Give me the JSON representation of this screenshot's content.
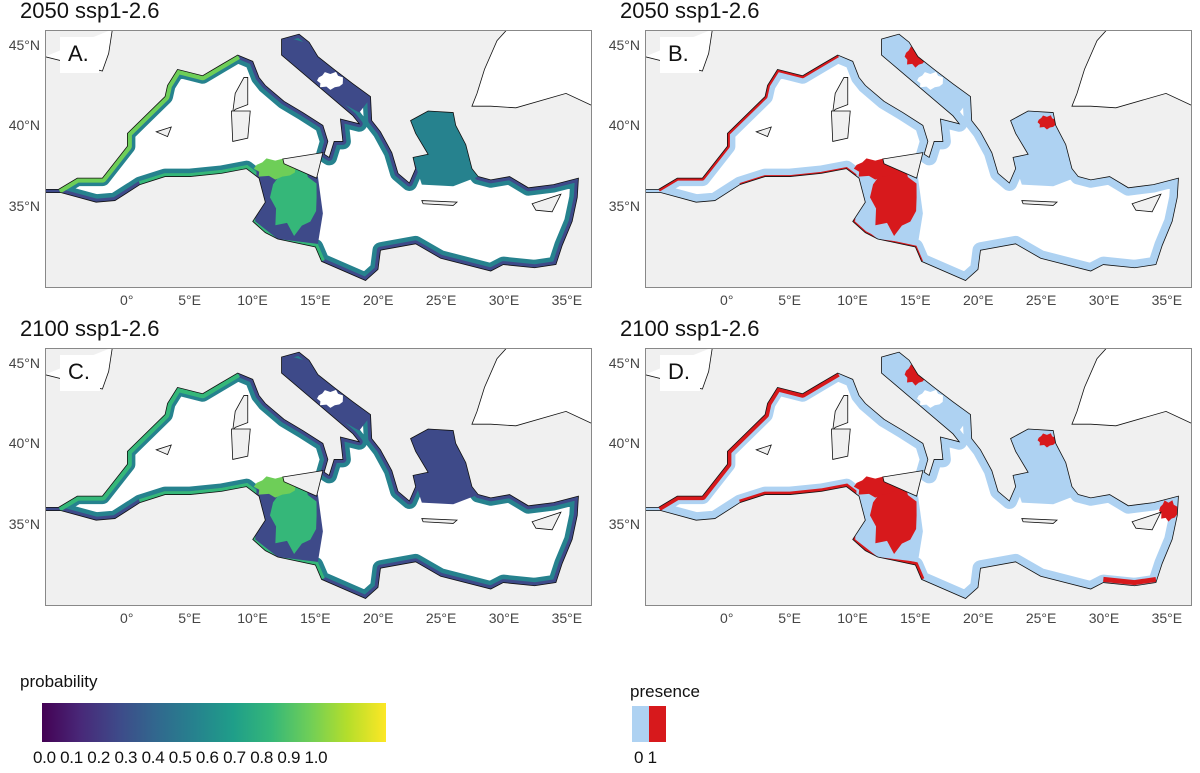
{
  "panels": [
    {
      "title": "2050 ssp1-2.6",
      "label": "A.",
      "type": "probability"
    },
    {
      "title": "2050 ssp1-2.6",
      "label": "B.",
      "type": "presence"
    },
    {
      "title": "2100 ssp1-2.6",
      "label": "C.",
      "type": "probability"
    },
    {
      "title": "2100 ssp1-2.6",
      "label": "D.",
      "type": "presence"
    }
  ],
  "lat_ticks": [
    "45°N",
    "40°N",
    "35°N"
  ],
  "lat_values": [
    45,
    40,
    35
  ],
  "lon_ticks": [
    "0°",
    "5°E",
    "10°E",
    "15°E",
    "20°E",
    "25°E",
    "30°E",
    "35°E"
  ],
  "lon_values": [
    0,
    5,
    10,
    15,
    20,
    25,
    30,
    35
  ],
  "legend_probability": {
    "title": "probability",
    "ticks": "0.0 0.1 0.2 0.3 0.4 0.5 0.6 0.7 0.8 0.9 1.0",
    "range": [
      0,
      1
    ]
  },
  "legend_presence": {
    "title": "presence",
    "ticks": "0 1",
    "colors": [
      "#aed2f2",
      "#d7191c"
    ]
  },
  "colors": {
    "background": "#f0f0f0",
    "sea": "#ffffff",
    "absent": "#aed2f2",
    "present": "#d7191c",
    "low": "#3e4a89",
    "mid": "#26828e",
    "high": "#35b779",
    "very_high": "#6ece58"
  }
}
